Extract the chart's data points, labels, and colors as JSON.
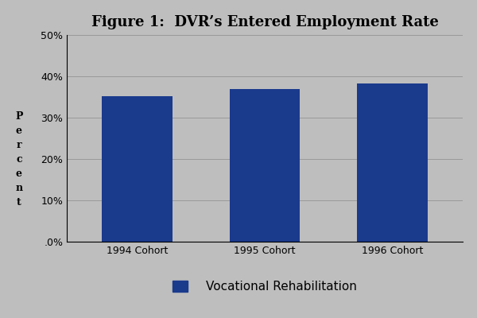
{
  "title": "Figure 1:  DVR’s Entered Employment Rate",
  "categories": [
    "1994 Cohort",
    "1995 Cohort",
    "1996 Cohort"
  ],
  "values": [
    0.352,
    0.37,
    0.383
  ],
  "bar_color": "#1A3A8C",
  "background_color": "#BEBEBE",
  "plot_bg_color": "#BEBEBE",
  "ylabel_text": "P\ne\nr\nc\ne\nn\nt",
  "yticks": [
    0.0,
    0.1,
    0.2,
    0.3,
    0.4,
    0.5
  ],
  "ytick_labels": [
    ".0%",
    "10%",
    "20%",
    "30%",
    "40%",
    "50%"
  ],
  "ylim": [
    0,
    0.5
  ],
  "legend_label": "Vocational Rehabilitation",
  "title_fontsize": 13,
  "tick_fontsize": 9,
  "ylabel_fontsize": 9,
  "legend_fontsize": 11
}
